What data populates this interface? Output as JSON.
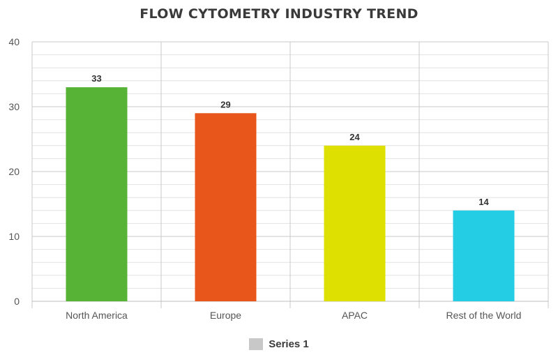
{
  "chart_data": {
    "type": "bar",
    "title": "FLOW CYTOMETRY INDUSTRY TREND",
    "categories": [
      "North America",
      "Europe",
      "APAC",
      "Rest of the World"
    ],
    "series": [
      {
        "name": "Series 1",
        "values": [
          33,
          29,
          24,
          14
        ]
      }
    ],
    "bar_colors": [
      "#56b335",
      "#e8561b",
      "#dde000",
      "#25cde4"
    ],
    "legend_color": "#c8c8c8",
    "ylim": [
      0,
      40
    ],
    "yticks": [
      0,
      10,
      20,
      30,
      40
    ],
    "grid": true,
    "legend_position": "bottom",
    "xlabel": "",
    "ylabel": ""
  }
}
